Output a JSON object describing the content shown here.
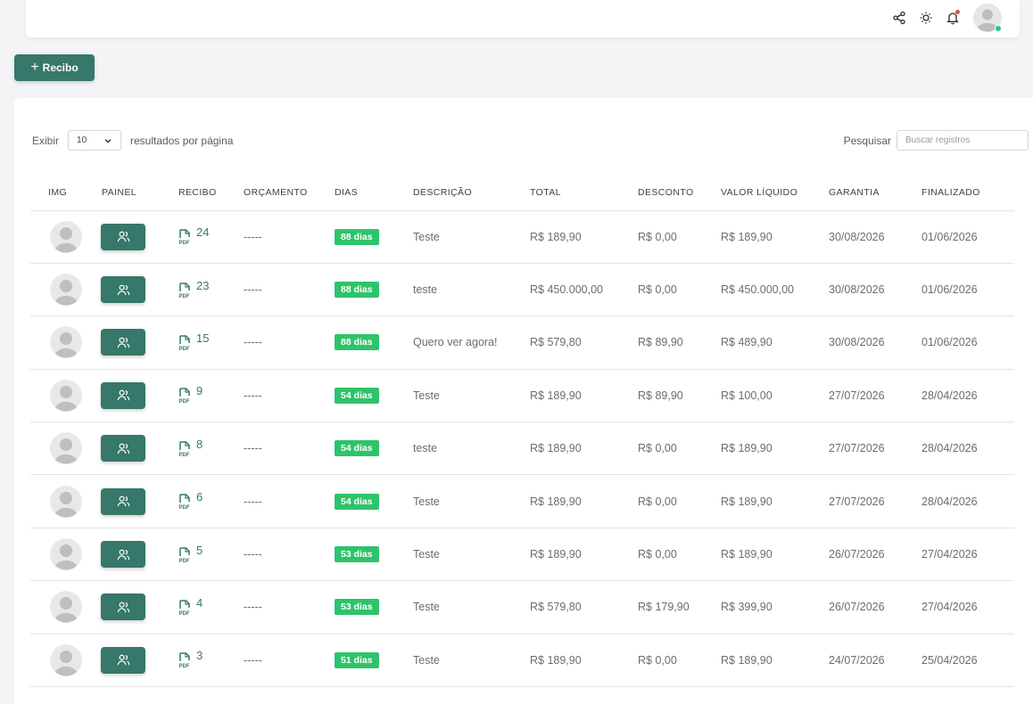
{
  "topbar": {
    "icons": [
      "share-icon",
      "sun-icon",
      "bell-icon",
      "avatar"
    ]
  },
  "toolbar": {
    "add_label": "Recibo",
    "add_icon": "+"
  },
  "controls": {
    "show_label": "Exibir",
    "per_page_value": "10",
    "per_page_suffix": "resultados por página",
    "search_label": "Pesquisar",
    "search_placeholder": "Buscar registros"
  },
  "columns": [
    "IMG",
    "PAINEL",
    "RECIBO",
    "ORÇAMENTO",
    "DIAS",
    "DESCRIÇÃO",
    "TOTAL",
    "DESCONTO",
    "VALOR LÍQUIDO",
    "GARANTIA",
    "FINALIZADO"
  ],
  "colors": {
    "primary": "#367869",
    "badge": "#2ec36b",
    "notification": "#e84b4b",
    "online": "#2ec27e"
  },
  "rows": [
    {
      "recibo": "24",
      "orcamento": "-----",
      "dias": "88 dias",
      "descricao": "Teste",
      "total": "R$ 189,90",
      "desconto": "R$ 0,00",
      "liquido": "R$ 189,90",
      "garantia": "30/08/2026",
      "finalizado": "01/06/2026"
    },
    {
      "recibo": "23",
      "orcamento": "-----",
      "dias": "88 dias",
      "descricao": "teste",
      "total": "R$ 450.000,00",
      "desconto": "R$ 0,00",
      "liquido": "R$ 450.000,00",
      "garantia": "30/08/2026",
      "finalizado": "01/06/2026"
    },
    {
      "recibo": "15",
      "orcamento": "-----",
      "dias": "88 dias",
      "descricao": "Quero ver agora!",
      "total": "R$ 579,80",
      "desconto": "R$ 89,90",
      "liquido": "R$ 489,90",
      "garantia": "30/08/2026",
      "finalizado": "01/06/2026"
    },
    {
      "recibo": "9",
      "orcamento": "-----",
      "dias": "54 dias",
      "descricao": "Teste",
      "total": "R$ 189,90",
      "desconto": "R$ 89,90",
      "liquido": "R$ 100,00",
      "garantia": "27/07/2026",
      "finalizado": "28/04/2026"
    },
    {
      "recibo": "8",
      "orcamento": "-----",
      "dias": "54 dias",
      "descricao": "teste",
      "total": "R$ 189,90",
      "desconto": "R$ 0,00",
      "liquido": "R$ 189,90",
      "garantia": "27/07/2026",
      "finalizado": "28/04/2026"
    },
    {
      "recibo": "6",
      "orcamento": "-----",
      "dias": "54 dias",
      "descricao": "Teste",
      "total": "R$ 189,90",
      "desconto": "R$ 0,00",
      "liquido": "R$ 189,90",
      "garantia": "27/07/2026",
      "finalizado": "28/04/2026"
    },
    {
      "recibo": "5",
      "orcamento": "-----",
      "dias": "53 dias",
      "descricao": "Teste",
      "total": "R$ 189,90",
      "desconto": "R$ 0,00",
      "liquido": "R$ 189,90",
      "garantia": "26/07/2026",
      "finalizado": "27/04/2026"
    },
    {
      "recibo": "4",
      "orcamento": "-----",
      "dias": "53 dias",
      "descricao": "Teste",
      "total": "R$ 579,80",
      "desconto": "R$ 179,90",
      "liquido": "R$ 399,90",
      "garantia": "26/07/2026",
      "finalizado": "27/04/2026"
    },
    {
      "recibo": "3",
      "orcamento": "-----",
      "dias": "51 dias",
      "descricao": "Teste",
      "total": "R$ 189,90",
      "desconto": "R$ 0,00",
      "liquido": "R$ 189,90",
      "garantia": "24/07/2026",
      "finalizado": "25/04/2026"
    }
  ]
}
